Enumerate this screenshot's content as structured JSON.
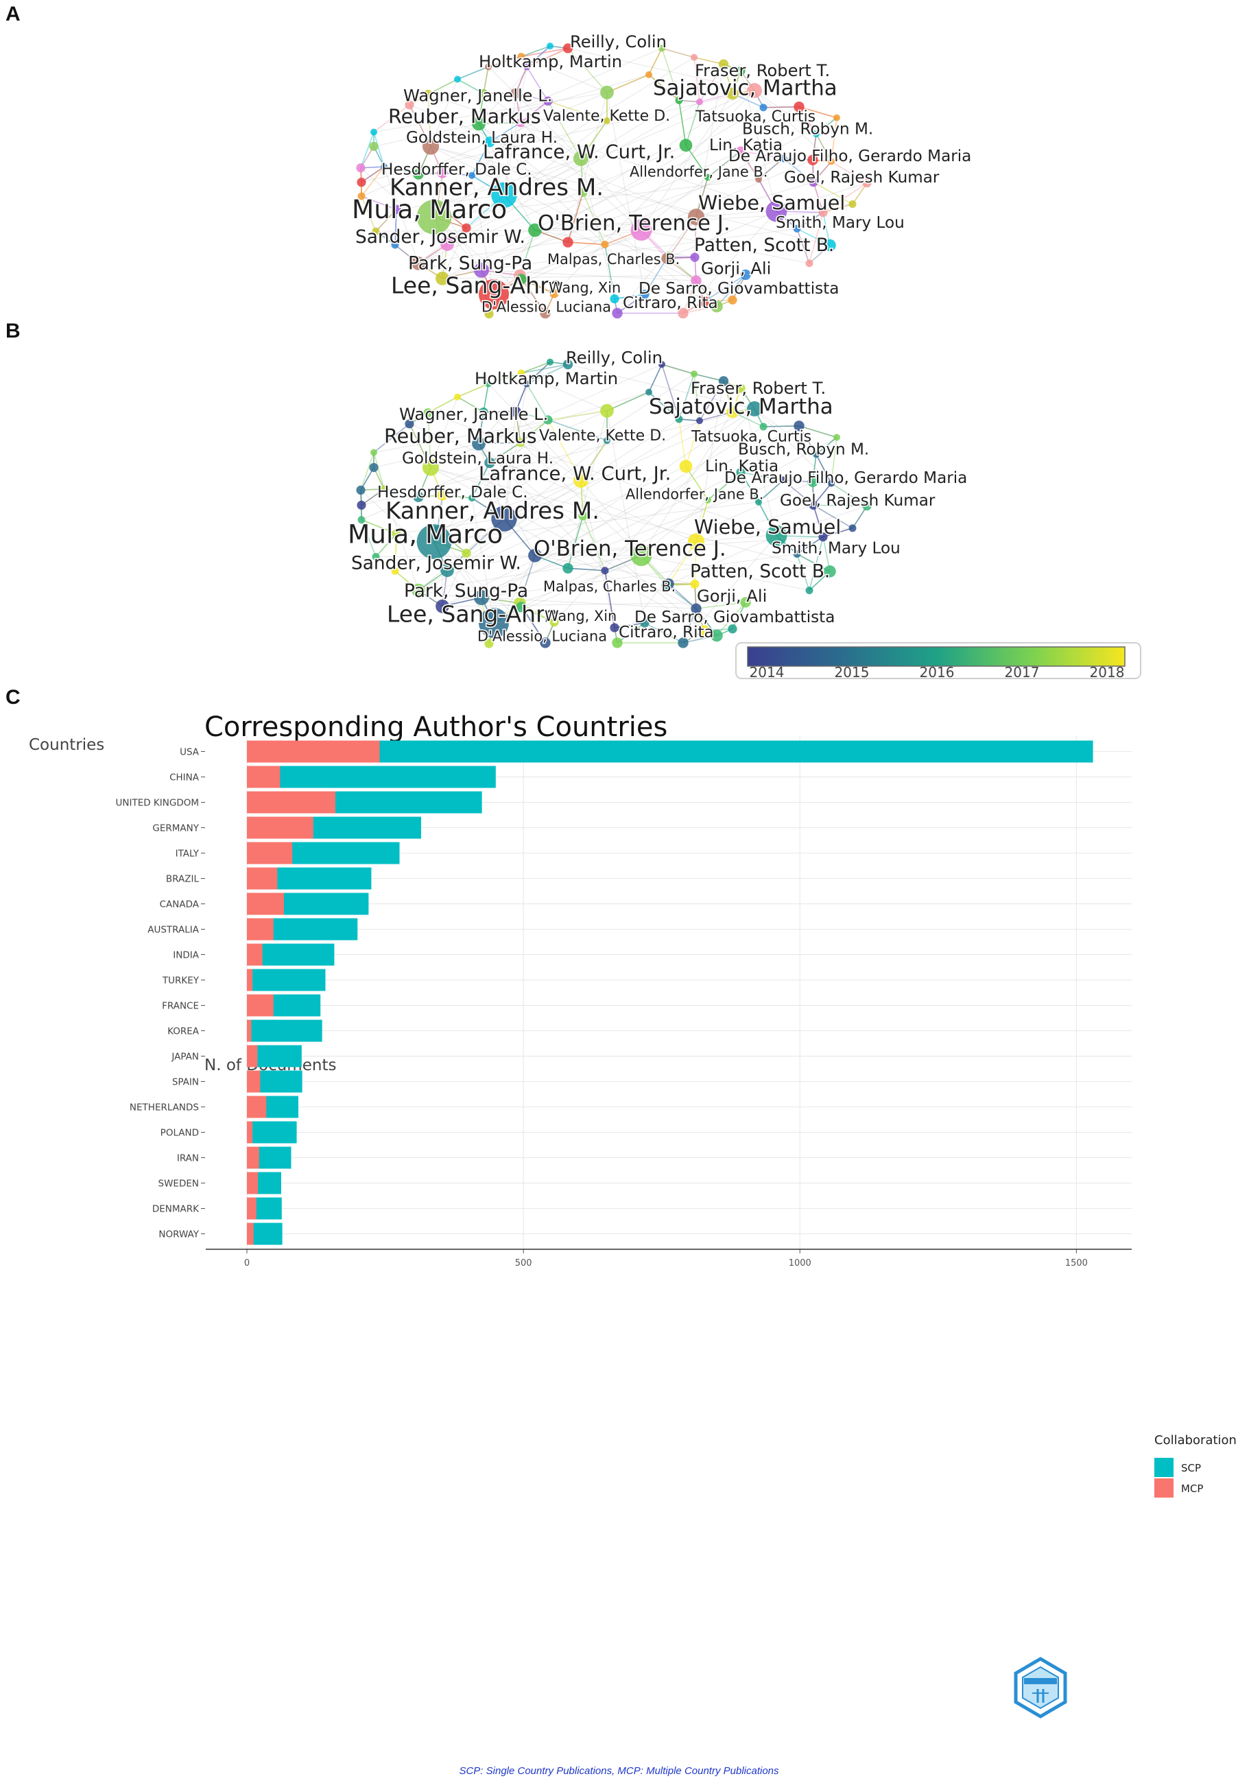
{
  "panels": {
    "a": "A",
    "b": "B",
    "c": "C"
  },
  "colors": {
    "scp": "#00bec4",
    "mcp": "#f8766d",
    "grid": "#e7e7e7",
    "edge": "#b9b9b9"
  },
  "network_labels": [
    {
      "id": "reilly",
      "text": "Reilly, Colin"
    },
    {
      "id": "holtkamp",
      "text": "Holtkamp, Martin"
    },
    {
      "id": "fraser",
      "text": "Fraser, Robert T."
    },
    {
      "id": "sajatovic",
      "text": "Sajatovic, Martha"
    },
    {
      "id": "wagner",
      "text": "Wagner, Janelle L."
    },
    {
      "id": "reuber",
      "text": "Reuber, Markus"
    },
    {
      "id": "valente",
      "text": "Valente, Kette D."
    },
    {
      "id": "tatsuoka",
      "text": "Tatsuoka, Curtis"
    },
    {
      "id": "busch",
      "text": "Busch, Robyn M."
    },
    {
      "id": "goldstein",
      "text": "Goldstein, Laura H."
    },
    {
      "id": "lin",
      "text": "Lin, Katia"
    },
    {
      "id": "lafrance",
      "text": "Lafrance, W. Curt, Jr."
    },
    {
      "id": "araujo",
      "text": "De Araujo Filho, Gerardo Maria"
    },
    {
      "id": "hesdorffer",
      "text": "Hesdorffer, Dale C."
    },
    {
      "id": "allendorfer",
      "text": "Allendorfer, Jane B."
    },
    {
      "id": "goel",
      "text": "Goel, Rajesh Kumar"
    },
    {
      "id": "kanner",
      "text": "Kanner, Andres M."
    },
    {
      "id": "wiebe",
      "text": "Wiebe, Samuel"
    },
    {
      "id": "mula",
      "text": "Mula, Marco"
    },
    {
      "id": "smith",
      "text": "Smith, Mary Lou"
    },
    {
      "id": "obrien",
      "text": "O'Brien, Terence J."
    },
    {
      "id": "sander",
      "text": "Sander, Josemir W."
    },
    {
      "id": "patten",
      "text": "Patten, Scott B."
    },
    {
      "id": "park",
      "text": "Park, Sung-Pa"
    },
    {
      "id": "malpas",
      "text": "Malpas, Charles B."
    },
    {
      "id": "gorji",
      "text": "Gorji, Ali"
    },
    {
      "id": "lee",
      "text": "Lee, Sang-Ahm"
    },
    {
      "id": "wang",
      "text": "Wang, Xin"
    },
    {
      "id": "desarro",
      "text": "De Sarro, Giovambattista"
    },
    {
      "id": "dalessio",
      "text": "D'Alessio, Luciana"
    },
    {
      "id": "citraro",
      "text": "Citraro, Rita"
    }
  ],
  "overlay_legend": {
    "ticks": [
      "2014",
      "2015",
      "2016",
      "2017",
      "2018"
    ]
  },
  "chart_data": {
    "type": "bar",
    "orientation": "horizontal",
    "stacked": true,
    "title": "Corresponding Author's Countries",
    "xlabel": "N. of Documents",
    "ylabel": "Countries",
    "xlim": [
      0,
      1600
    ],
    "xticks": [
      0,
      500,
      1000,
      1500
    ],
    "xtick_labels": [
      "0",
      "500",
      "1000",
      "1500"
    ],
    "legend_title": "Collaboration",
    "legend_position": "right",
    "categories": [
      "USA",
      "CHINA",
      "UNITED KINGDOM",
      "GERMANY",
      "ITALY",
      "BRAZIL",
      "CANADA",
      "AUSTRALIA",
      "INDIA",
      "TURKEY",
      "FRANCE",
      "KOREA",
      "JAPAN",
      "SPAIN",
      "NETHERLANDS",
      "POLAND",
      "IRAN",
      "SWEDEN",
      "DENMARK",
      "NORWAY"
    ],
    "series": [
      {
        "name": "SCP",
        "values": [
          1290,
          390,
          265,
          195,
          194,
          170,
          153,
          152,
          130,
          132,
          85,
          128,
          80,
          76,
          58,
          80,
          58,
          42,
          46,
          52
        ]
      },
      {
        "name": "MCP",
        "values": [
          240,
          60,
          160,
          120,
          82,
          55,
          67,
          48,
          28,
          10,
          48,
          8,
          19,
          24,
          35,
          10,
          22,
          20,
          17,
          12
        ]
      }
    ],
    "footnote": "SCP: Single Country Publications, MCP: Multiple Country Publications"
  }
}
